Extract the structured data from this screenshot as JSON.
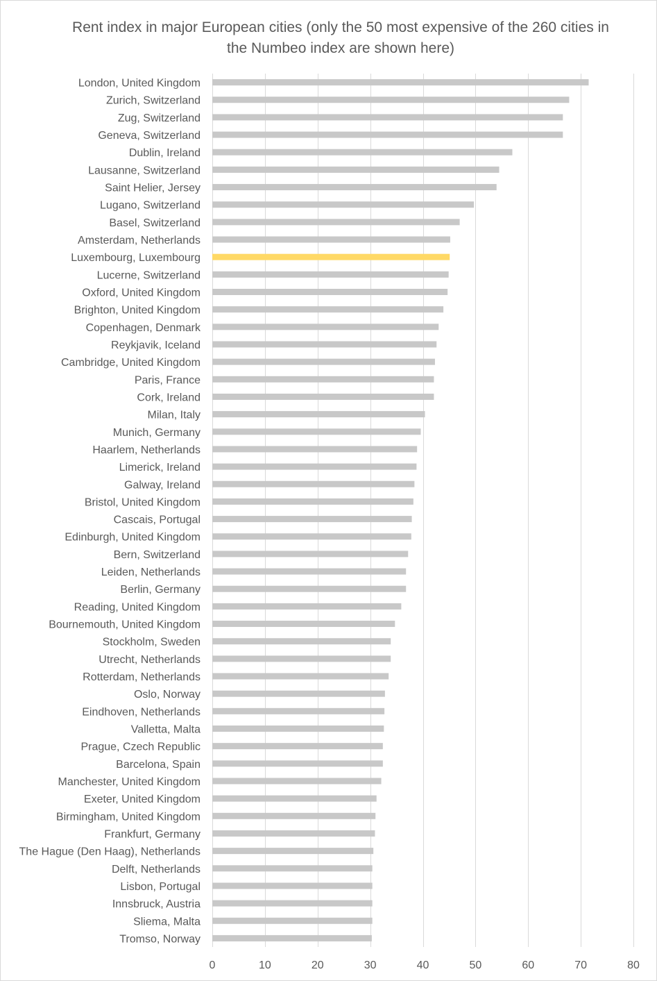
{
  "chart_data": {
    "type": "bar",
    "orientation": "horizontal",
    "title": "Rent index in major European cities (only the 50 most expensive of the 260 cities in the Numbeo index are shown here)",
    "xlabel": "",
    "ylabel": "",
    "xlim": [
      0,
      80
    ],
    "xticks": [
      0,
      10,
      20,
      30,
      40,
      50,
      60,
      70,
      80
    ],
    "grid": true,
    "legend": "none",
    "colors": {
      "bar": "#c8c8c8",
      "highlight": "#ffd966",
      "grid": "#d9d9d9",
      "text": "#595959"
    },
    "highlight_category": "Luxembourg, Luxembourg",
    "categories": [
      "London, United Kingdom",
      "Zurich, Switzerland",
      "Zug, Switzerland",
      "Geneva, Switzerland",
      "Dublin, Ireland",
      "Lausanne, Switzerland",
      "Saint Helier, Jersey",
      "Lugano, Switzerland",
      "Basel, Switzerland",
      "Amsterdam, Netherlands",
      "Luxembourg, Luxembourg",
      "Lucerne, Switzerland",
      "Oxford, United Kingdom",
      "Brighton, United Kingdom",
      "Copenhagen, Denmark",
      "Reykjavik, Iceland",
      "Cambridge, United Kingdom",
      "Paris, France",
      "Cork, Ireland",
      "Milan, Italy",
      "Munich, Germany",
      "Haarlem, Netherlands",
      "Limerick, Ireland",
      "Galway, Ireland",
      "Bristol, United Kingdom",
      "Cascais, Portugal",
      "Edinburgh, United Kingdom",
      "Bern, Switzerland",
      "Leiden, Netherlands",
      "Berlin, Germany",
      "Reading, United Kingdom",
      "Bournemouth, United Kingdom",
      "Stockholm, Sweden",
      "Utrecht, Netherlands",
      "Rotterdam, Netherlands",
      "Oslo, Norway",
      "Eindhoven, Netherlands",
      "Valletta, Malta",
      "Prague, Czech Republic",
      "Barcelona, Spain",
      "Manchester, United Kingdom",
      "Exeter, United Kingdom",
      "Birmingham, United Kingdom",
      "Frankfurt, Germany",
      "The Hague (Den Haag), Netherlands",
      "Delft, Netherlands",
      "Lisbon, Portugal",
      "Innsbruck, Austria",
      "Sliema, Malta",
      "Tromso, Norway"
    ],
    "values": [
      71.5,
      67.8,
      66.6,
      66.6,
      57.0,
      54.5,
      54.0,
      49.7,
      47.0,
      45.2,
      45.1,
      44.9,
      44.7,
      43.9,
      43.0,
      42.6,
      42.3,
      42.1,
      42.1,
      40.4,
      39.6,
      38.9,
      38.8,
      38.4,
      38.2,
      37.9,
      37.8,
      37.2,
      36.8,
      36.8,
      35.9,
      34.7,
      33.9,
      33.9,
      33.5,
      32.8,
      32.7,
      32.6,
      32.4,
      32.4,
      32.1,
      31.2,
      31.0,
      30.9,
      30.6,
      30.4,
      30.4,
      30.4,
      30.4,
      30.3
    ]
  }
}
